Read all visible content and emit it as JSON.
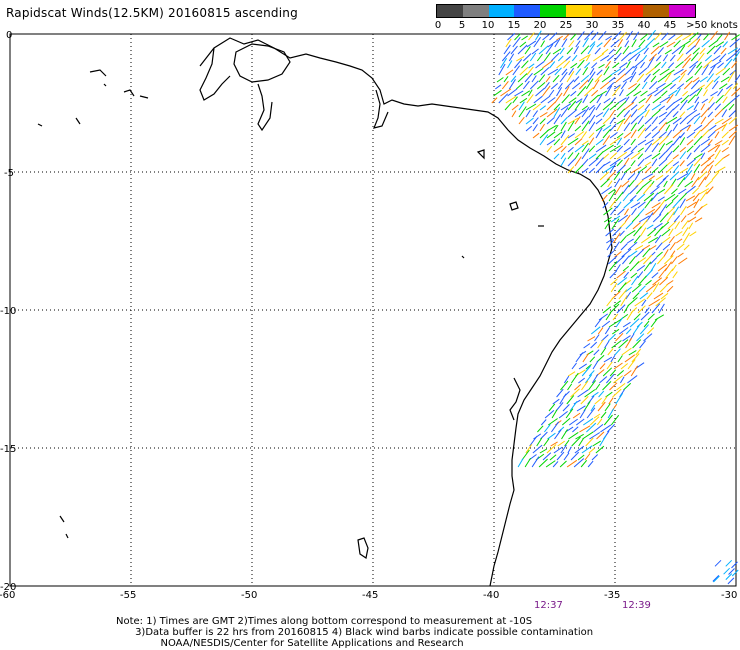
{
  "title": "Rapidscat Winds(12.5KM) 20160815 ascending",
  "legend": {
    "labels": [
      "0",
      "5",
      "10",
      "15",
      "20",
      "25",
      "30",
      "35",
      "40",
      "45",
      ">50 knots"
    ],
    "colors": [
      "#444444",
      "#7f7f7f",
      "#00b0ff",
      "#1f5bff",
      "#00d400",
      "#ffd200",
      "#ff7a00",
      "#ff2a00",
      "#b06000",
      "#d000d0",
      "#7b00b4"
    ]
  },
  "axes": {
    "lat_labels": [
      "0",
      "-5",
      "-10",
      "-15",
      "-20"
    ],
    "lon_labels": [
      "-60",
      "-55",
      "-50",
      "-45",
      "-40",
      "-35",
      "-30"
    ]
  },
  "times": [
    "12:37",
    "12:39"
  ],
  "note_lines": [
    "Note: 1) Times are GMT 2)Times along bottom correspond to measurement at -10S",
    "      3)Data buffer is 22 hrs from 20160815 4) Black wind barbs indicate possible contamination",
    "              NOAA/NESDIS/Center for Satellite Applications and Research"
  ]
}
